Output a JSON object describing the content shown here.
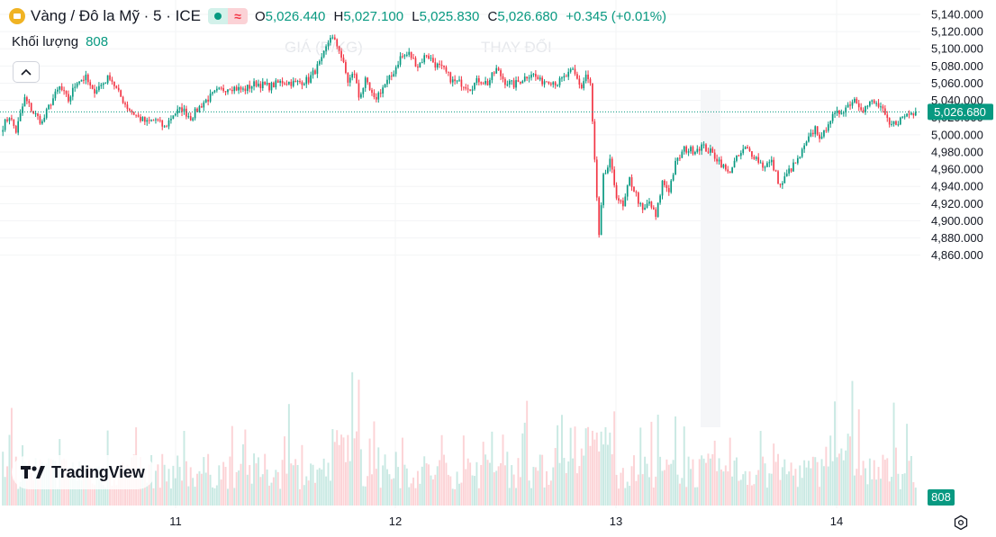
{
  "chart_data": {
    "type": "candlestick",
    "symbol": "Vàng / Đô la Mỹ · 5 · ICE",
    "ohlc": {
      "open": "5,026.440",
      "high": "5,027.100",
      "low": "5,025.830",
      "close": "5,026.680",
      "change": "+0.345 (+0.01%)"
    },
    "volume_label": "Khối lượng",
    "volume_value": "808",
    "last_price": "5,026.680",
    "y_ticks": [
      "5,140.000",
      "5,120.000",
      "5,100.000",
      "5,080.000",
      "5,060.000",
      "5,040.000",
      "5,020.000",
      "5,000.000",
      "4,980.000",
      "4,960.000",
      "4,940.000",
      "4,920.000",
      "4,900.000",
      "4,880.000",
      "4,860.000"
    ],
    "ylim": [
      4860,
      5140
    ],
    "x_ticks": [
      "11",
      "12",
      "13",
      "14"
    ],
    "path": [
      {
        "t": 0,
        "p": 5010
      },
      {
        "t": 3,
        "p": 5022
      },
      {
        "t": 6,
        "p": 5004
      },
      {
        "t": 10,
        "p": 5042
      },
      {
        "t": 14,
        "p": 5026
      },
      {
        "t": 18,
        "p": 5014
      },
      {
        "t": 22,
        "p": 5038
      },
      {
        "t": 26,
        "p": 5055
      },
      {
        "t": 30,
        "p": 5040
      },
      {
        "t": 34,
        "p": 5063
      },
      {
        "t": 38,
        "p": 5066
      },
      {
        "t": 41,
        "p": 5050
      },
      {
        "t": 45,
        "p": 5058
      },
      {
        "t": 49,
        "p": 5068
      },
      {
        "t": 53,
        "p": 5048
      },
      {
        "t": 57,
        "p": 5032
      },
      {
        "t": 62,
        "p": 5020
      },
      {
        "t": 66,
        "p": 5014
      },
      {
        "t": 70,
        "p": 5018
      },
      {
        "t": 74,
        "p": 5008
      },
      {
        "t": 78,
        "p": 5024
      },
      {
        "t": 82,
        "p": 5030
      },
      {
        "t": 86,
        "p": 5020
      },
      {
        "t": 92,
        "p": 5038
      },
      {
        "t": 98,
        "p": 5050
      },
      {
        "t": 104,
        "p": 5056
      },
      {
        "t": 110,
        "p": 5052
      },
      {
        "t": 116,
        "p": 5060
      },
      {
        "t": 122,
        "p": 5056
      },
      {
        "t": 128,
        "p": 5062
      },
      {
        "t": 134,
        "p": 5060
      },
      {
        "t": 140,
        "p": 5064
      },
      {
        "t": 146,
        "p": 5086
      },
      {
        "t": 150,
        "p": 5115
      },
      {
        "t": 154,
        "p": 5100
      },
      {
        "t": 158,
        "p": 5062
      },
      {
        "t": 161,
        "p": 5072
      },
      {
        "t": 163,
        "p": 5044
      },
      {
        "t": 166,
        "p": 5062
      },
      {
        "t": 170,
        "p": 5040
      },
      {
        "t": 174,
        "p": 5055
      },
      {
        "t": 178,
        "p": 5068
      },
      {
        "t": 182,
        "p": 5090
      },
      {
        "t": 186,
        "p": 5094
      },
      {
        "t": 190,
        "p": 5080
      },
      {
        "t": 194,
        "p": 5094
      },
      {
        "t": 198,
        "p": 5082
      },
      {
        "t": 202,
        "p": 5075
      },
      {
        "t": 206,
        "p": 5062
      },
      {
        "t": 210,
        "p": 5060
      },
      {
        "t": 214,
        "p": 5055
      },
      {
        "t": 218,
        "p": 5064
      },
      {
        "t": 222,
        "p": 5060
      },
      {
        "t": 226,
        "p": 5076
      },
      {
        "t": 230,
        "p": 5062
      },
      {
        "t": 234,
        "p": 5058
      },
      {
        "t": 238,
        "p": 5065
      },
      {
        "t": 242,
        "p": 5072
      },
      {
        "t": 246,
        "p": 5062
      },
      {
        "t": 250,
        "p": 5064
      },
      {
        "t": 254,
        "p": 5060
      },
      {
        "t": 258,
        "p": 5068
      },
      {
        "t": 261,
        "p": 5074
      },
      {
        "t": 265,
        "p": 5055
      },
      {
        "t": 267,
        "p": 5070
      },
      {
        "t": 269,
        "p": 5058
      },
      {
        "t": 271,
        "p": 4970
      },
      {
        "t": 273,
        "p": 4880
      },
      {
        "t": 275,
        "p": 4950
      },
      {
        "t": 278,
        "p": 4968
      },
      {
        "t": 281,
        "p": 4930
      },
      {
        "t": 284,
        "p": 4915
      },
      {
        "t": 287,
        "p": 4948
      },
      {
        "t": 290,
        "p": 4930
      },
      {
        "t": 293,
        "p": 4910
      },
      {
        "t": 296,
        "p": 4922
      },
      {
        "t": 299,
        "p": 4904
      },
      {
        "t": 302,
        "p": 4945
      },
      {
        "t": 305,
        "p": 4936
      },
      {
        "t": 308,
        "p": 4966
      },
      {
        "t": 312,
        "p": 4983
      },
      {
        "t": 316,
        "p": 4982
      },
      {
        "t": 320,
        "p": 4987
      },
      {
        "t": 324,
        "p": 4980
      },
      {
        "t": 328,
        "p": 4970
      },
      {
        "t": 332,
        "p": 4955
      },
      {
        "t": 336,
        "p": 4972
      },
      {
        "t": 340,
        "p": 4984
      },
      {
        "t": 344,
        "p": 4976
      },
      {
        "t": 348,
        "p": 4964
      },
      {
        "t": 352,
        "p": 4968
      },
      {
        "t": 356,
        "p": 4940
      },
      {
        "t": 360,
        "p": 4958
      },
      {
        "t": 364,
        "p": 4970
      },
      {
        "t": 368,
        "p": 4990
      },
      {
        "t": 372,
        "p": 5008
      },
      {
        "t": 375,
        "p": 4994
      },
      {
        "t": 378,
        "p": 5016
      },
      {
        "t": 382,
        "p": 5024
      },
      {
        "t": 386,
        "p": 5032
      },
      {
        "t": 390,
        "p": 5042
      },
      {
        "t": 394,
        "p": 5030
      },
      {
        "t": 398,
        "p": 5038
      },
      {
        "t": 402,
        "p": 5032
      },
      {
        "t": 406,
        "p": 5010
      },
      {
        "t": 410,
        "p": 5016
      },
      {
        "t": 414,
        "p": 5024
      },
      {
        "t": 418,
        "p": 5026.68
      }
    ],
    "n_bars": 419
  }
}
